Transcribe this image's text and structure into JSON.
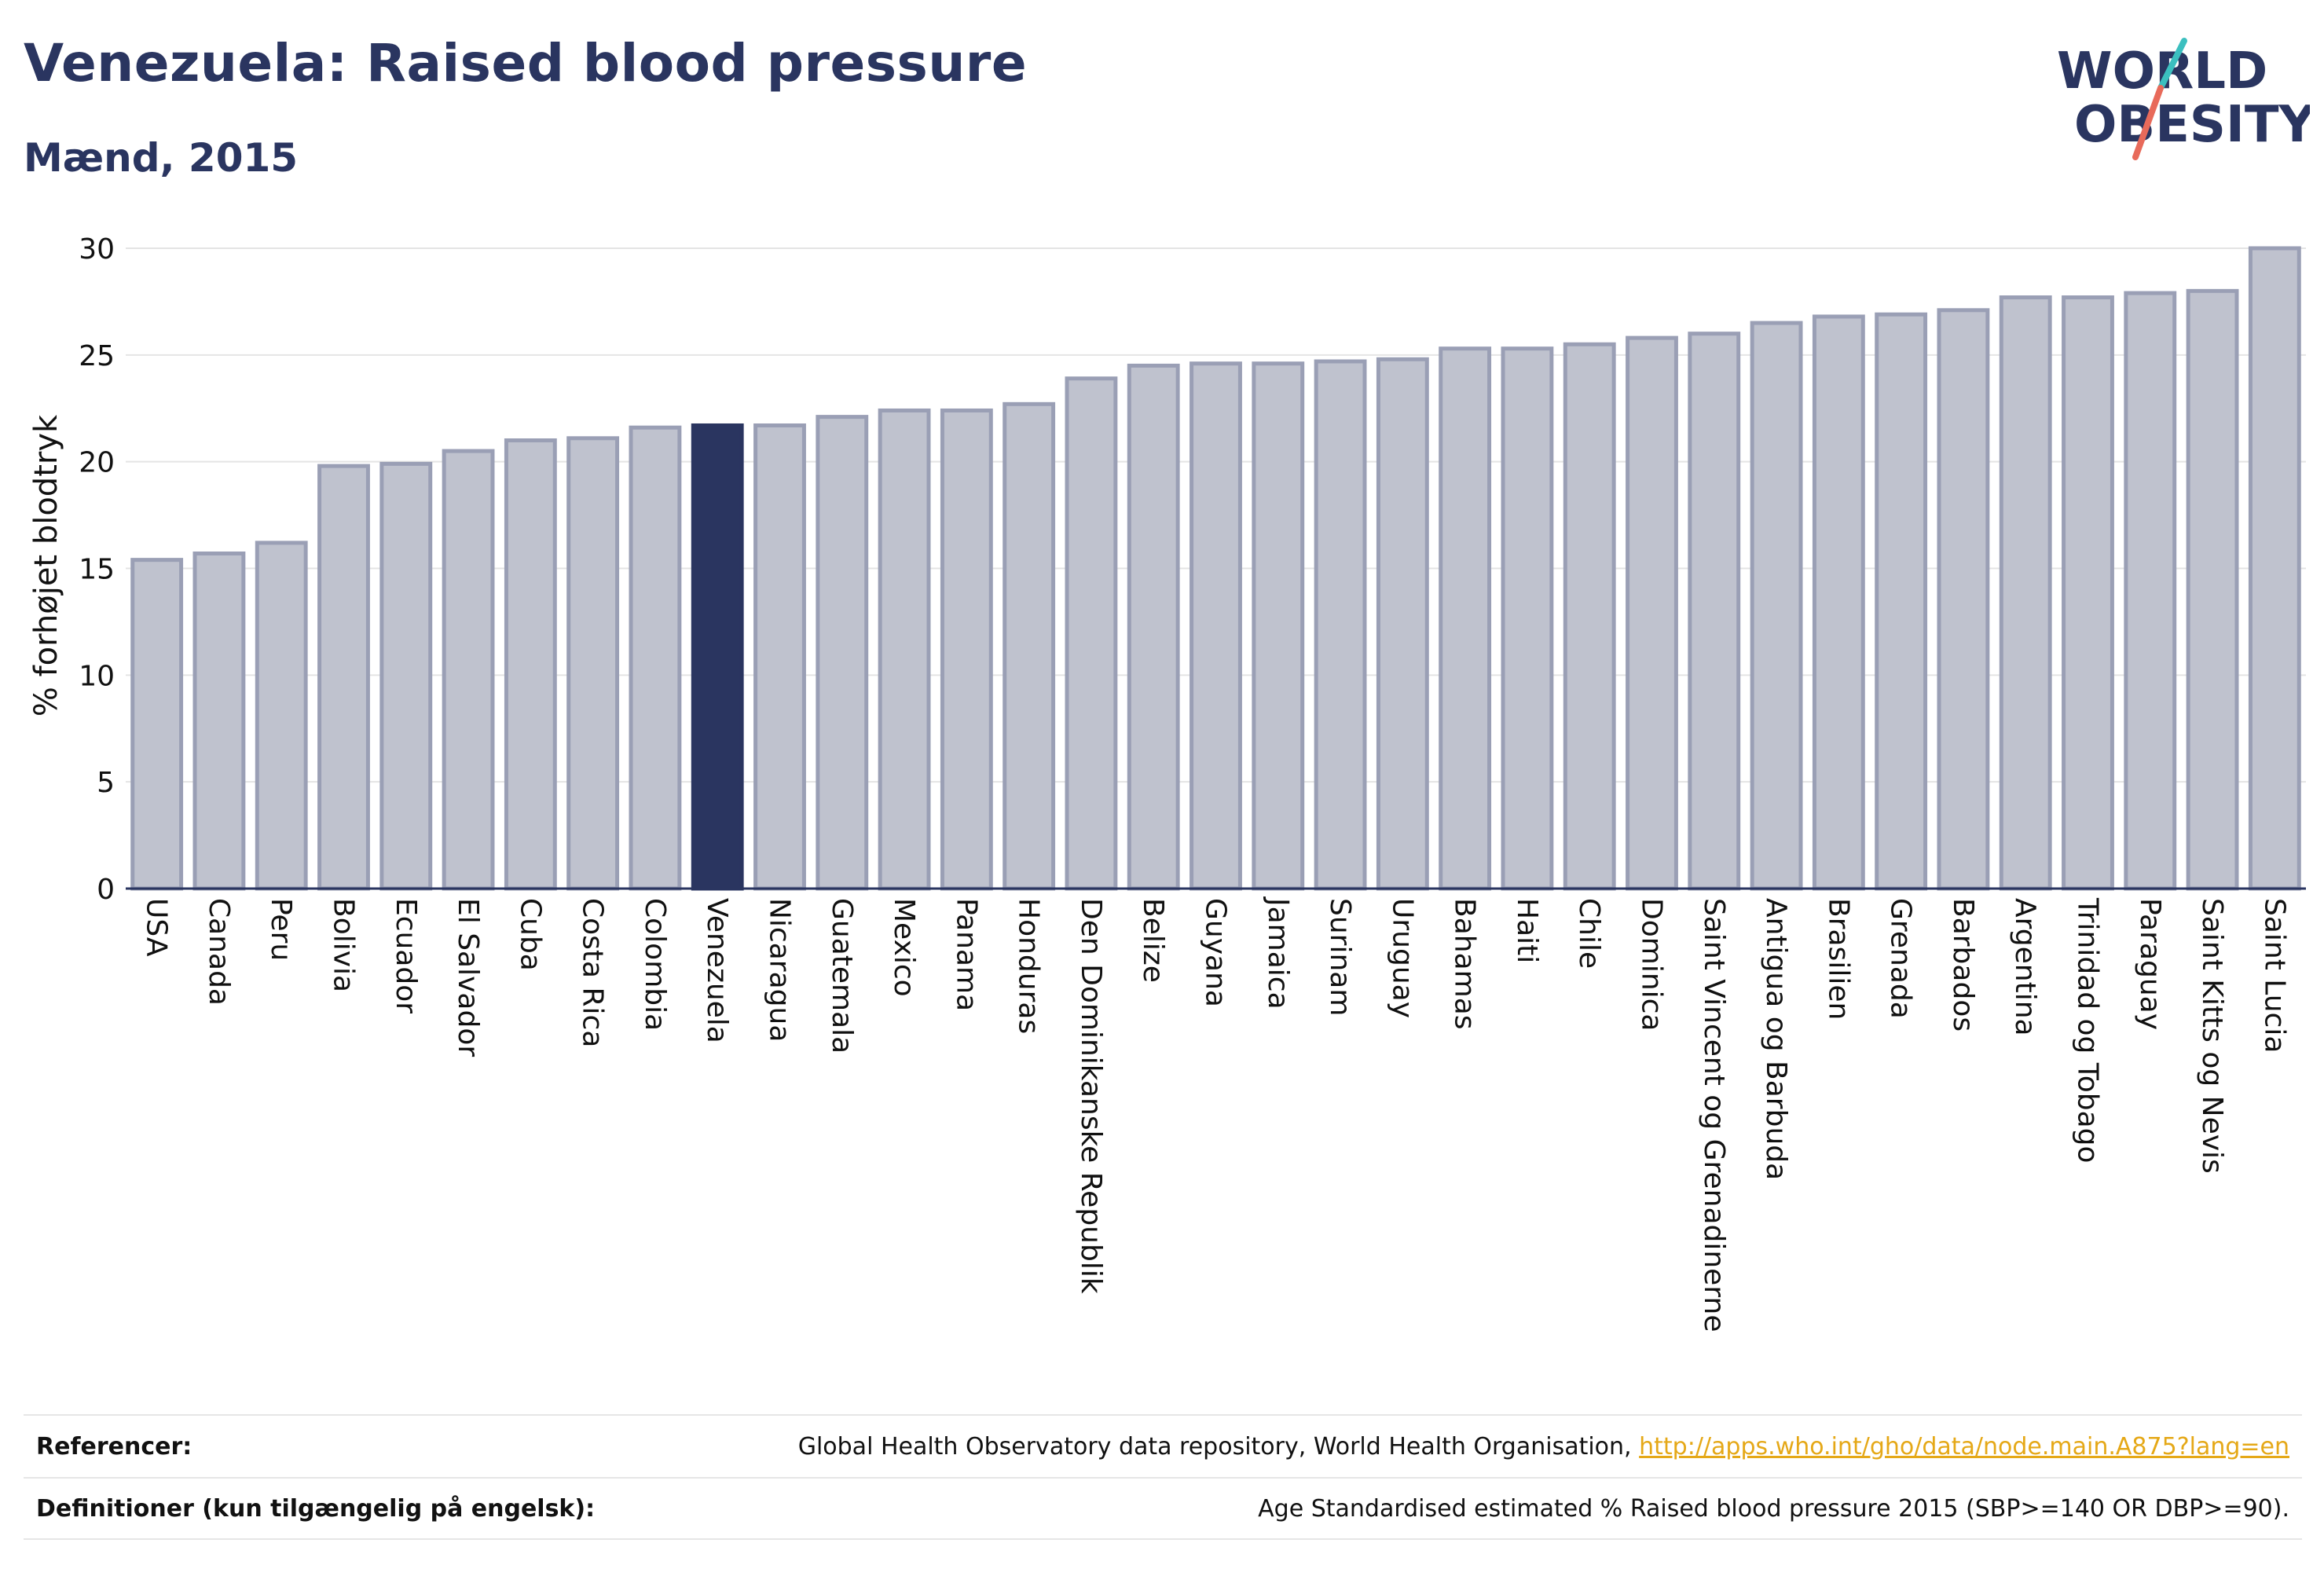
{
  "header": {
    "title": "Venezuela: Raised blood pressure",
    "subtitle": "Mænd, 2015"
  },
  "logo": {
    "line1": "WORLD",
    "line2": "OBESITY",
    "colors": {
      "text": "#2a3560",
      "slash_teal": "#3bbfbf",
      "slash_coral": "#e86a5a"
    }
  },
  "colors": {
    "bar_default": "#bfc2ce",
    "bar_border": "#9a9fb5",
    "bar_highlight": "#2a3560",
    "grid": "#e4e4e4",
    "axis": "#2a3560",
    "link": "#e5a817"
  },
  "chart_data": {
    "type": "bar",
    "ylabel": "% forhøjet blodtryk",
    "xlabel": "",
    "ylim": [
      0,
      30
    ],
    "yticks": [
      0,
      5,
      10,
      15,
      20,
      25,
      30
    ],
    "grid": true,
    "highlight": "Venezuela",
    "categories": [
      "USA",
      "Canada",
      "Peru",
      "Bolivia",
      "Ecuador",
      "El Salvador",
      "Cuba",
      "Costa Rica",
      "Colombia",
      "Venezuela",
      "Nicaragua",
      "Guatemala",
      "Mexico",
      "Panama",
      "Honduras",
      "Den Dominikanske Republik",
      "Belize",
      "Guyana",
      "Jamaica",
      "Surinam",
      "Uruguay",
      "Bahamas",
      "Haiti",
      "Chile",
      "Dominica",
      "Saint Vincent og Grenadinerne",
      "Antigua og Barbuda",
      "Brasilien",
      "Grenada",
      "Barbados",
      "Argentina",
      "Trinidad og Tobago",
      "Paraguay",
      "Saint Kitts og Nevis",
      "Saint Lucia"
    ],
    "values": [
      15.4,
      15.7,
      16.2,
      19.8,
      19.9,
      20.5,
      21.0,
      21.1,
      21.6,
      21.7,
      21.7,
      22.1,
      22.4,
      22.4,
      22.7,
      23.9,
      24.5,
      24.6,
      24.6,
      24.7,
      24.8,
      25.3,
      25.3,
      25.5,
      25.8,
      26.0,
      26.5,
      26.8,
      26.9,
      27.1,
      27.7,
      27.7,
      27.9,
      28.0,
      30.0
    ]
  },
  "footer": {
    "references_label": "Referencer:",
    "references_text": "Global Health Observatory data repository, World Health Organisation,",
    "references_link": "http://apps.who.int/gho/data/node.main.A875?lang=en",
    "definitions_label": "Definitioner (kun tilgængelig på engelsk):",
    "definitions_text": "Age Standardised estimated % Raised blood pressure 2015 (SBP>=140 OR DBP>=90)."
  }
}
